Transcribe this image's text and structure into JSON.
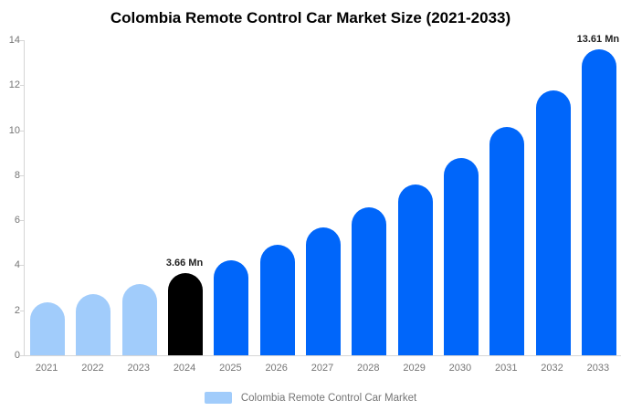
{
  "title": "Colombia Remote Control Car Market Size (2021-2033)",
  "chart_data": {
    "type": "bar",
    "title": "Colombia Remote Control Car Market Size (2021-2033)",
    "categories": [
      "2021",
      "2022",
      "2023",
      "2024",
      "2025",
      "2026",
      "2027",
      "2028",
      "2029",
      "2030",
      "2031",
      "2032",
      "2033"
    ],
    "values": [
      2.36,
      2.73,
      3.16,
      3.66,
      4.23,
      4.9,
      5.67,
      6.56,
      7.59,
      8.78,
      10.16,
      11.76,
      13.61
    ],
    "unit": "Mn",
    "xlabel": "",
    "ylabel": "",
    "ylim": [
      0,
      14
    ],
    "yticks": [
      0,
      2,
      4,
      6,
      8,
      10,
      12,
      14
    ],
    "grid": false,
    "bar_colors": [
      "#a1ccfb",
      "#a1ccfb",
      "#a1ccfb",
      "#000000",
      "#0066fa",
      "#0066fa",
      "#0066fa",
      "#0066fa",
      "#0066fa",
      "#0066fa",
      "#0066fa",
      "#0066fa",
      "#0066fa"
    ],
    "color_roles": {
      "historical": "#a1ccfb",
      "base_year": "#000000",
      "forecast": "#0066fa"
    },
    "annotations": [
      {
        "category": "2024",
        "index": 3,
        "text": "3.66 Mn"
      },
      {
        "category": "2033",
        "index": 12,
        "text": "13.61 Mn"
      }
    ],
    "legend": {
      "position": "bottom",
      "label": "Colombia Remote Control Car Market",
      "swatch_color": "#a1ccfb"
    },
    "axis_color": "#d6d6d6",
    "tick_text_color": "#757575"
  }
}
